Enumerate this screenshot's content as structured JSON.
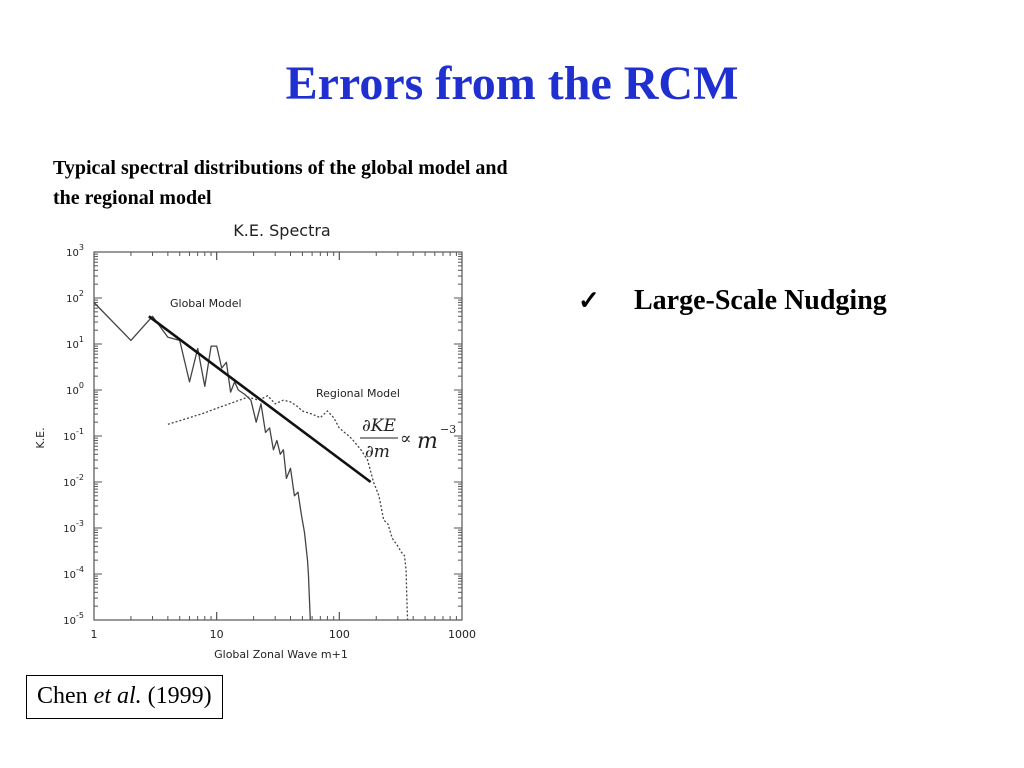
{
  "slide": {
    "title": "Errors from the RCM",
    "title_color": "#1f2fd0",
    "caption": "Typical spectral distributions of the global model and the regional model"
  },
  "bullet": {
    "check_icon": "checkmark-icon",
    "text": "Large-Scale Nudging"
  },
  "citation": {
    "author": "Chen",
    "etal": "et al.",
    "year": "(1999)"
  },
  "chart_data": {
    "type": "line",
    "title": "K.E. Spectra",
    "xlabel": "Global Zonal Wave m+1",
    "ylabel": "K.E.",
    "xscale": "log",
    "yscale": "log",
    "xlim": [
      1,
      1000
    ],
    "ylim": [
      1e-05,
      1000
    ],
    "x_tick_labels": [
      "1",
      "10",
      "100",
      "1000"
    ],
    "y_tick_labels": [
      {
        "base": "10",
        "exp": "3"
      },
      {
        "base": "10",
        "exp": "2"
      },
      {
        "base": "10",
        "exp": "1"
      },
      {
        "base": "10",
        "exp": "0"
      },
      {
        "base": "10",
        "exp": "-1"
      },
      {
        "base": "10",
        "exp": "-2"
      },
      {
        "base": "10",
        "exp": "-3"
      },
      {
        "base": "10",
        "exp": "-4"
      },
      {
        "base": "10",
        "exp": "-5"
      }
    ],
    "series": [
      {
        "name": "Global Model",
        "style": "solid",
        "x": [
          1,
          2,
          3,
          4,
          5,
          6,
          7,
          8,
          9,
          10,
          11,
          12,
          13,
          14,
          15,
          17,
          19,
          21,
          23,
          25,
          27,
          29,
          31,
          33,
          35,
          37,
          40,
          43,
          46,
          49,
          52,
          55,
          56,
          58
        ],
        "y": [
          80,
          12,
          40,
          14,
          12,
          1.5,
          8,
          1.2,
          9,
          9,
          3,
          4,
          0.9,
          1.5,
          1,
          0.8,
          0.6,
          0.2,
          0.5,
          0.12,
          0.15,
          0.05,
          0.08,
          0.04,
          0.05,
          0.012,
          0.02,
          0.005,
          0.006,
          0.002,
          0.0008,
          0.0002,
          0.0001,
          1e-05
        ]
      },
      {
        "name": "Regional Model",
        "style": "dotted",
        "x": [
          4,
          6,
          8,
          10,
          14,
          18,
          22,
          26,
          30,
          35,
          40,
          45,
          50,
          60,
          70,
          80,
          90,
          100,
          110,
          120,
          130,
          150,
          170,
          190,
          210,
          230,
          250,
          270,
          300,
          320,
          340,
          350,
          355,
          360
        ],
        "y": [
          0.18,
          0.25,
          0.32,
          0.4,
          0.55,
          0.7,
          0.6,
          0.75,
          0.5,
          0.6,
          0.55,
          0.45,
          0.35,
          0.3,
          0.25,
          0.35,
          0.25,
          0.15,
          0.12,
          0.1,
          0.08,
          0.05,
          0.03,
          0.01,
          0.005,
          0.0015,
          0.0012,
          0.0006,
          0.0004,
          0.0003,
          0.00025,
          0.00012,
          3e-05,
          1e-05
        ]
      }
    ],
    "fit_line": {
      "style": "bold",
      "x": [
        2.8,
        180
      ],
      "y": [
        40,
        0.01
      ]
    },
    "annotations": {
      "global_label": "Global Model",
      "regional_label": "Regional Model",
      "formula": {
        "numerator": "∂KE",
        "denominator": "∂m",
        "relation": "∝",
        "variable": "m",
        "exponent": "−3"
      }
    }
  }
}
